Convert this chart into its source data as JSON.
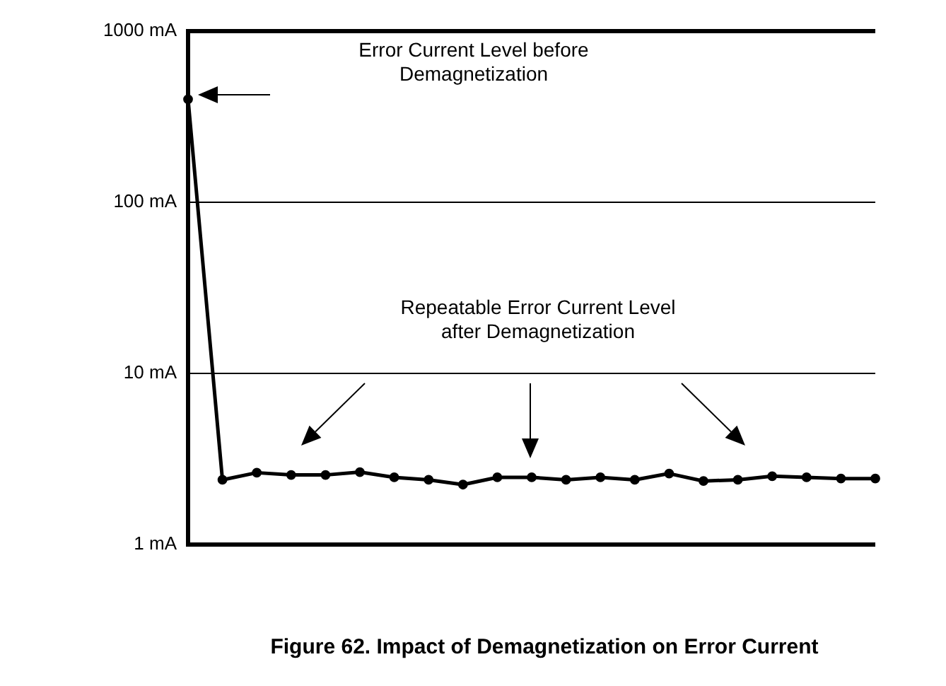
{
  "chart_data": {
    "type": "line",
    "categories": [
      null,
      null,
      null,
      null,
      null,
      null,
      null,
      null,
      null,
      null,
      null,
      null,
      null,
      null,
      null,
      null,
      null,
      null,
      null,
      null,
      null
    ],
    "series": [
      {
        "color": "#000000",
        "values": [
          400,
          2.39,
          2.63,
          2.55,
          2.55,
          2.65,
          2.47,
          2.39,
          2.24,
          2.47,
          2.47,
          2.39,
          2.47,
          2.39,
          2.6,
          2.35,
          2.39,
          2.51,
          2.47,
          2.43,
          2.43
        ]
      }
    ],
    "log": true,
    "ylim": [
      1,
      1000
    ],
    "yticks": [
      {
        "value": 1,
        "label": "1 mA"
      },
      {
        "value": 10,
        "label": "10 mA"
      },
      {
        "value": 100,
        "label": "100 mA"
      },
      {
        "value": 1000,
        "label": "1000 mA"
      }
    ],
    "grid": "y",
    "legend": false,
    "marker": "circle",
    "line_style": "solid",
    "tick_labels": "y",
    "annotations": [
      "Error Current Level before Demagnetization",
      "Repeatable Error Current Level after Demagnetization",
      "Figure 62. Impact of Demagnetization on Error Current"
    ]
  }
}
